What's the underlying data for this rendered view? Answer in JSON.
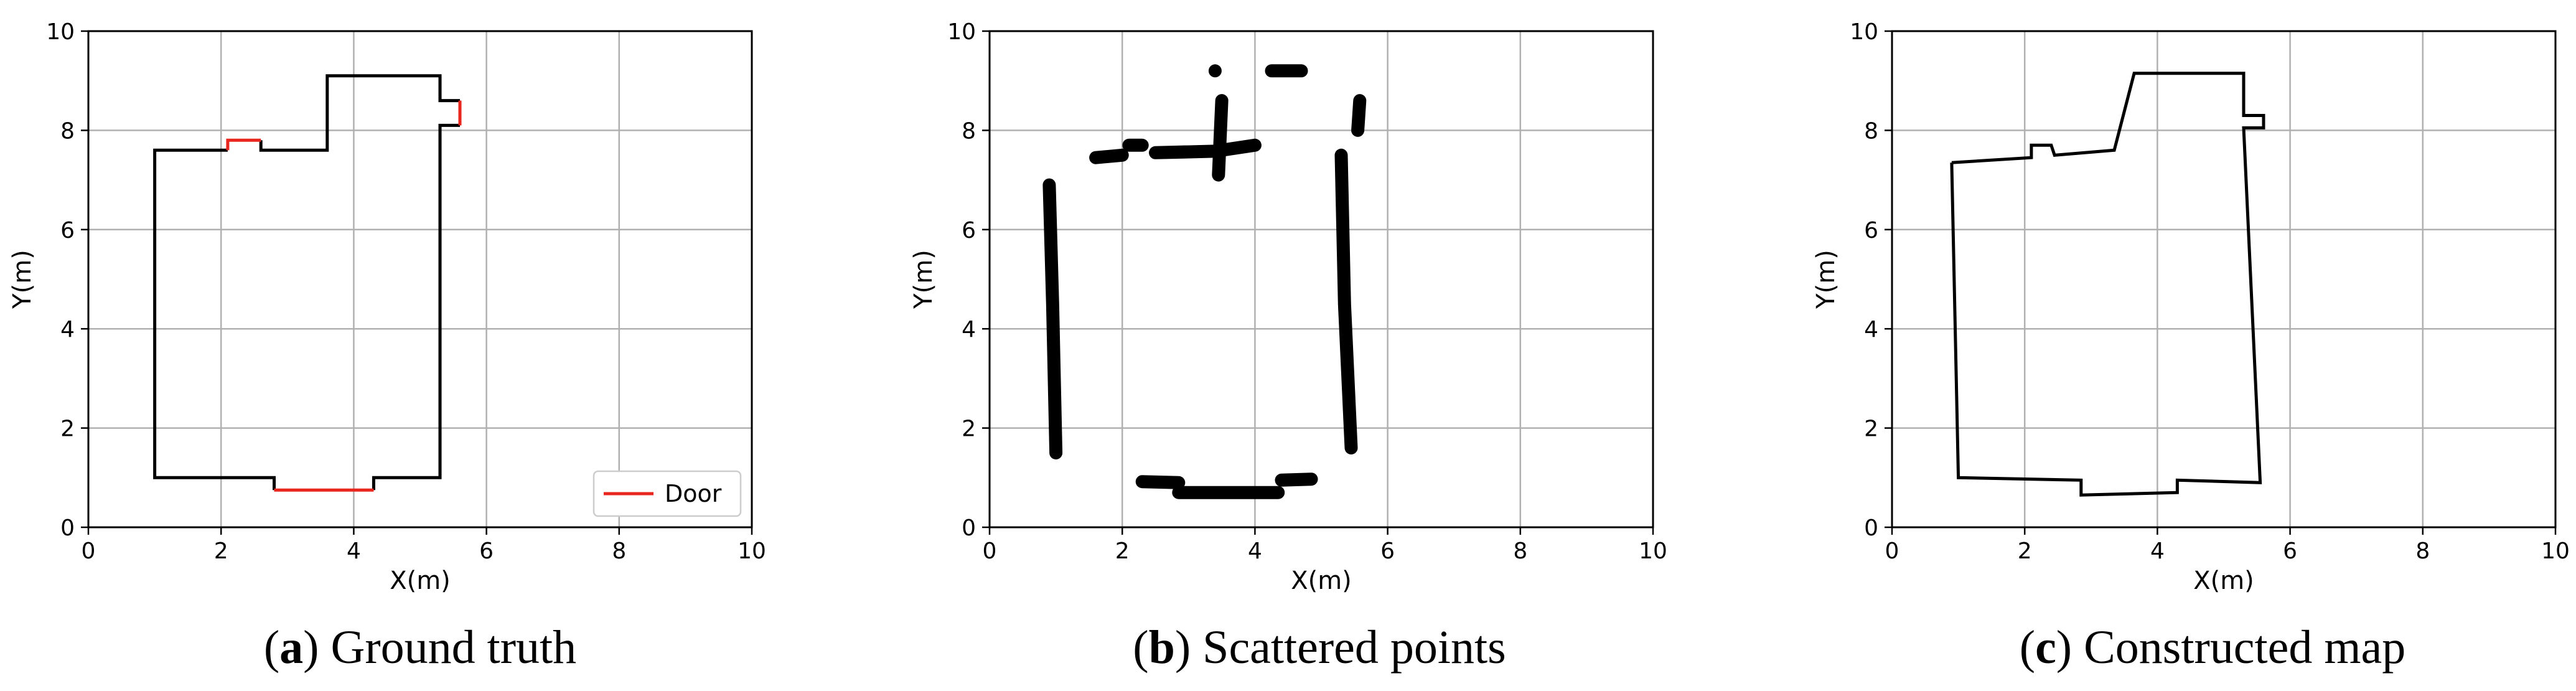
{
  "chart_data": [
    {
      "type": "line",
      "caption_letter": "a",
      "caption_text": "Ground truth",
      "xlabel": "X(m)",
      "ylabel": "Y(m)",
      "xlim": [
        0,
        10
      ],
      "ylim": [
        0,
        10
      ],
      "xticks": [
        "0",
        "2",
        "4",
        "6",
        "8",
        "10"
      ],
      "yticks": [
        "0",
        "2",
        "4",
        "6",
        "8",
        "10"
      ],
      "grid": true,
      "legend": {
        "position": "lower-right",
        "entries": [
          {
            "label": "Door",
            "color": "#e8261d"
          }
        ]
      },
      "series": [
        {
          "color": "#000000",
          "segments": [
            [
              [
                2.1,
                7.6
              ],
              [
                1.0,
                7.6
              ],
              [
                1.0,
                1.0
              ],
              [
                2.8,
                1.0
              ],
              [
                2.8,
                0.75
              ]
            ],
            [
              [
                4.3,
                0.75
              ],
              [
                4.3,
                1.0
              ],
              [
                5.3,
                1.0
              ],
              [
                5.3,
                8.1
              ],
              [
                5.6,
                8.1
              ]
            ],
            [
              [
                5.6,
                8.6
              ],
              [
                5.3,
                8.6
              ],
              [
                5.3,
                9.1
              ],
              [
                3.6,
                9.1
              ],
              [
                3.6,
                7.6
              ],
              [
                2.6,
                7.6
              ],
              [
                2.6,
                7.8
              ]
            ]
          ]
        },
        {
          "name": "Door",
          "color": "#e8261d",
          "segments": [
            [
              [
                2.1,
                7.6
              ],
              [
                2.1,
                7.8
              ],
              [
                2.6,
                7.8
              ]
            ],
            [
              [
                2.8,
                0.75
              ],
              [
                4.3,
                0.75
              ]
            ],
            [
              [
                5.6,
                8.1
              ],
              [
                5.6,
                8.6
              ]
            ]
          ]
        }
      ]
    },
    {
      "type": "scatter",
      "caption_letter": "b",
      "caption_text": "Scattered points",
      "xlabel": "X(m)",
      "ylabel": "Y(m)",
      "xlim": [
        0,
        10
      ],
      "ylim": [
        0,
        10
      ],
      "xticks": [
        "0",
        "2",
        "4",
        "6",
        "8",
        "10"
      ],
      "yticks": [
        "0",
        "2",
        "4",
        "6",
        "8",
        "10"
      ],
      "grid": true,
      "color": "#000000",
      "segments": [
        [
          [
            0.9,
            6.9
          ],
          [
            0.95,
            4.5
          ],
          [
            1.0,
            1.5
          ]
        ],
        [
          [
            1.6,
            7.45
          ],
          [
            2.0,
            7.5
          ]
        ],
        [
          [
            2.1,
            7.7
          ],
          [
            2.3,
            7.7
          ]
        ],
        [
          [
            2.5,
            7.55
          ],
          [
            3.4,
            7.58
          ],
          [
            4.0,
            7.7
          ]
        ],
        [
          [
            3.45,
            7.1
          ],
          [
            3.5,
            8.6
          ]
        ],
        [
          [
            3.4,
            9.2
          ],
          [
            3.4,
            9.2
          ]
        ],
        [
          [
            4.25,
            9.2
          ],
          [
            4.7,
            9.2
          ]
        ],
        [
          [
            5.3,
            7.5
          ],
          [
            5.35,
            4.5
          ],
          [
            5.45,
            1.6
          ]
        ],
        [
          [
            5.55,
            8.0
          ],
          [
            5.58,
            8.6
          ]
        ],
        [
          [
            2.3,
            0.92
          ],
          [
            2.85,
            0.9
          ]
        ],
        [
          [
            2.85,
            0.7
          ],
          [
            4.35,
            0.7
          ]
        ],
        [
          [
            4.4,
            0.95
          ],
          [
            4.85,
            0.97
          ]
        ]
      ]
    },
    {
      "type": "line",
      "caption_letter": "c",
      "caption_text": "Constructed map",
      "xlabel": "X(m)",
      "ylabel": "Y(m)",
      "xlim": [
        0,
        10
      ],
      "ylim": [
        0,
        10
      ],
      "xticks": [
        "0",
        "2",
        "4",
        "6",
        "8",
        "10"
      ],
      "yticks": [
        "0",
        "2",
        "4",
        "6",
        "8",
        "10"
      ],
      "grid": true,
      "series": [
        {
          "color": "#000000",
          "segments": [
            [
              [
                0.9,
                7.35
              ],
              [
                2.1,
                7.45
              ],
              [
                2.1,
                7.7
              ],
              [
                2.4,
                7.7
              ],
              [
                2.45,
                7.5
              ],
              [
                3.35,
                7.6
              ],
              [
                3.65,
                9.15
              ],
              [
                5.3,
                9.15
              ],
              [
                5.3,
                8.3
              ],
              [
                5.6,
                8.3
              ],
              [
                5.6,
                8.05
              ],
              [
                5.3,
                8.05
              ],
              [
                5.55,
                0.9
              ],
              [
                4.3,
                0.95
              ],
              [
                4.3,
                0.7
              ],
              [
                2.85,
                0.65
              ],
              [
                2.85,
                0.95
              ],
              [
                1.0,
                1.0
              ],
              [
                0.9,
                7.35
              ]
            ]
          ]
        }
      ]
    }
  ]
}
